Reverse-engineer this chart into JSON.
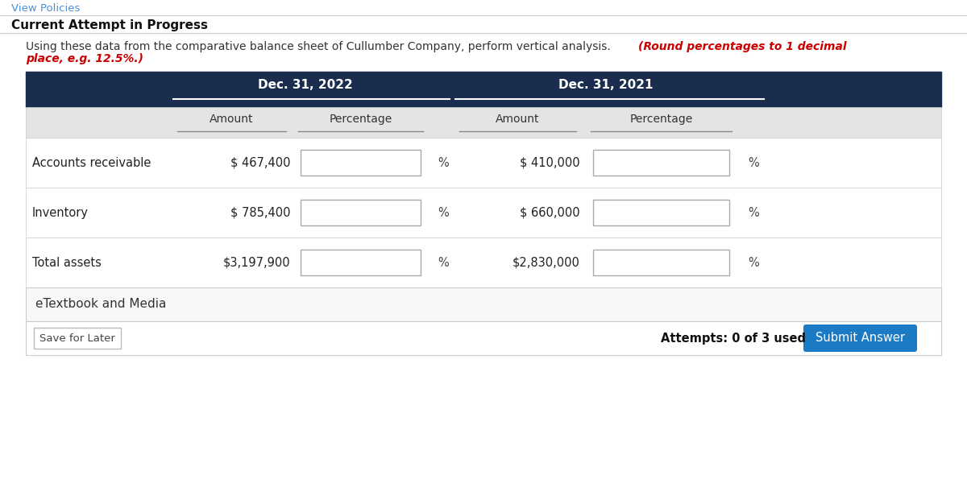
{
  "view_policies_text": "View Policies",
  "header_text": "Current Attempt in Progress",
  "instruction_normal": "Using these data from the comparative balance sheet of Cullumber Company, perform vertical analysis. ",
  "instruction_red_line1": "(Round percentages to 1 decimal",
  "instruction_red_line2": "place, e.g. 12.5%.)",
  "col_header_2022": "Dec. 31, 2022",
  "col_header_2021": "Dec. 31, 2021",
  "sub_header_amount": "Amount",
  "sub_header_percentage": "Percentage",
  "rows": [
    {
      "label": "Accounts receivable",
      "amount_2022": "$ 467,400",
      "amount_2021": "$ 410,000"
    },
    {
      "label": "Inventory",
      "amount_2022": "$ 785,400",
      "amount_2021": "$ 660,000"
    },
    {
      "label": "Total assets",
      "amount_2022": "$3,197,900",
      "amount_2021": "$2,830,000"
    }
  ],
  "footer_text": "eTextbook and Media",
  "save_later_text": "Save for Later",
  "attempts_text": "Attempts: 0 of 3 used",
  "submit_text": "Submit Answer",
  "table_header_bg": "#1b2d4f",
  "table_header_text_color": "#ffffff",
  "table_subheader_bg": "#e4e4e4",
  "input_box_color": "#ffffff",
  "input_box_border": "#aaaaaa",
  "link_color": "#4a90d9",
  "red_text_color": "#cc0000",
  "submit_btn_color": "#1a7bc4",
  "submit_btn_text_color": "#ffffff",
  "page_bg": "#ffffff",
  "border_color": "#cccccc",
  "text_dark": "#222222",
  "text_gray": "#555555"
}
